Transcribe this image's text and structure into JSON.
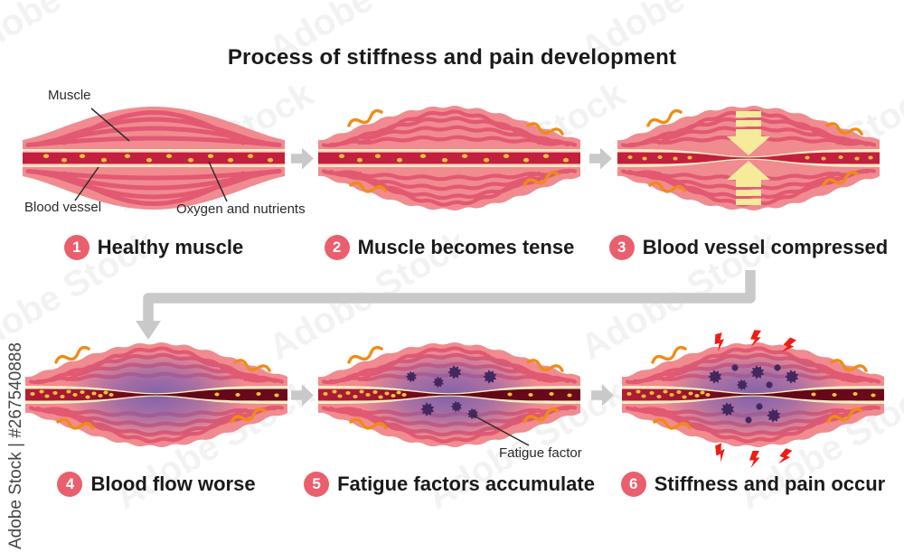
{
  "title": "Process of stiffness and pain development",
  "steps": [
    {
      "num": "1",
      "label": "Healthy muscle"
    },
    {
      "num": "2",
      "label": "Muscle becomes tense"
    },
    {
      "num": "3",
      "label": "Blood vessel compressed"
    },
    {
      "num": "4",
      "label": "Blood flow worse"
    },
    {
      "num": "5",
      "label": "Fatigue factors accumulate"
    },
    {
      "num": "6",
      "label": "Stiffness and pain occur"
    }
  ],
  "annotations": {
    "muscle": "Muscle",
    "blood_vessel": "Blood vessel",
    "oxygen_nutrients": "Oxygen and nutrients",
    "fatigue_factor": "Fatigue factor"
  },
  "watermark": {
    "id_text": "Adobe Stock | #267540888",
    "tile_text": "Adobe Stock"
  },
  "colors": {
    "muscle_pink": "#f08b90",
    "muscle_stripe": "#e25971",
    "vessel_wall_cream": "#f8ecc3",
    "vessel_blood_bright": "#c2203e",
    "vessel_blood_dark": "#6c0a1d",
    "nutrient_yellow": "#eac33d",
    "tension_orange": "#ef8c16",
    "compress_arrow_yellow": "#f6eb9b",
    "congestion_purple": "#7c5fae",
    "fatigue_factor_purple": "#43285f",
    "pain_red": "#ee1c16",
    "flow_arrow_gray": "#c9c9c9",
    "badge_pink": "#ea5f6d",
    "text_dark": "#1a1a1a",
    "pointer_line": "#2b2b2b"
  }
}
